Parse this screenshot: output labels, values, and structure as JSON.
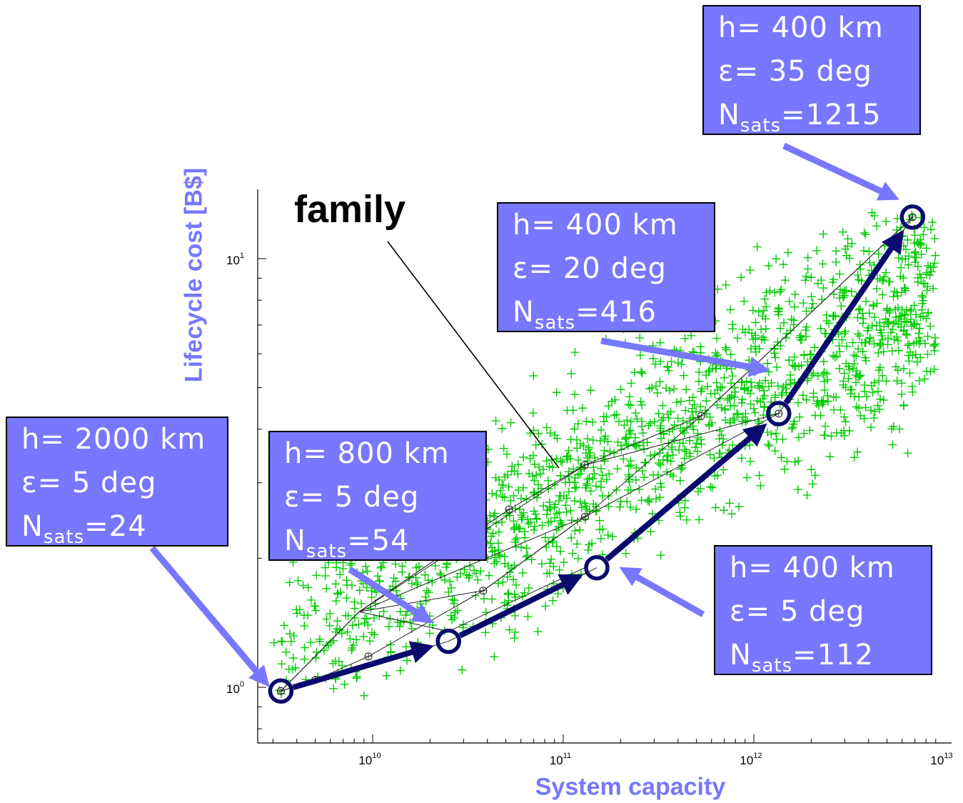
{
  "chart_data": {
    "type": "scatter",
    "xlabel": "System capacity",
    "ylabel": "Lifecycle cost [B$]",
    "xscale": "log",
    "yscale": "log",
    "xlim": [
      2600000000.0,
      10000000000000.0
    ],
    "ylim": [
      0.7,
      14
    ],
    "x_ticks": [
      {
        "value": 10000000000.0,
        "base": "10",
        "exp": "10"
      },
      {
        "value": 100000000000.0,
        "base": "10",
        "exp": "11"
      },
      {
        "value": 1000000000000.0,
        "base": "10",
        "exp": "12"
      },
      {
        "value": 10000000000000.0,
        "base": "10",
        "exp": "13"
      }
    ],
    "y_ticks": [
      {
        "value": 1,
        "base": "10",
        "exp": "0"
      },
      {
        "value": 10,
        "base": "10",
        "exp": "1"
      }
    ],
    "design_cloud": {
      "marker": "plus",
      "color": "#00cc00",
      "approx_count": 1600,
      "x_range": [
        3000000000.0,
        9000000000000.0
      ],
      "y_range": [
        0.95,
        13
      ],
      "note_trend": "log-linear upward band"
    },
    "pareto_path": {
      "color": "#0a0a6e",
      "points": [
        {
          "x": 3300000000.0,
          "y": 0.98
        },
        {
          "x": 25000000000.0,
          "y": 1.28
        },
        {
          "x": 150000000000.0,
          "y": 1.9
        },
        {
          "x": 1350000000000.0,
          "y": 4.35
        },
        {
          "x": 6800000000000.0,
          "y": 12.5
        }
      ]
    },
    "family_lines": {
      "color": "#000000",
      "markers": [
        {
          "x": 3300000000.0,
          "y": 0.98
        },
        {
          "x": 5000000000.0,
          "y": 1.04
        },
        {
          "x": 9500000000.0,
          "y": 1.18
        },
        {
          "x": 38000000000.0,
          "y": 1.68
        },
        {
          "x": 52000000000.0,
          "y": 2.6
        },
        {
          "x": 130000000000.0,
          "y": 2.5
        },
        {
          "x": 130000000000.0,
          "y": 3.3
        },
        {
          "x": 530000000000.0,
          "y": 4.3
        },
        {
          "x": 1350000000000.0,
          "y": 4.35
        },
        {
          "x": 6800000000000.0,
          "y": 12.5
        }
      ],
      "lines": [
        [
          [
            3300000000.0,
            0.98
          ],
          [
            8500000000.0,
            1.5
          ],
          [
            52000000000.0,
            2.6
          ],
          [
            130000000000.0,
            3.3
          ],
          [
            530000000000.0,
            4.3
          ],
          [
            6800000000000.0,
            12.5
          ]
        ],
        [
          [
            3300000000.0,
            0.98
          ],
          [
            5000000000.0,
            1.04
          ],
          [
            9500000000.0,
            1.18
          ],
          [
            38000000000.0,
            1.68
          ],
          [
            130000000000.0,
            2.5
          ],
          [
            1350000000000.0,
            4.35
          ],
          [
            6800000000000.0,
            12.5
          ]
        ],
        [
          [
            3300000000.0,
            0.98
          ],
          [
            8500000000.0,
            1.5
          ],
          [
            38000000000.0,
            1.68
          ],
          [
            130000000000.0,
            2.5
          ]
        ],
        [
          [
            8500000000.0,
            1.5
          ],
          [
            130000000000.0,
            3.3
          ],
          [
            1350000000000.0,
            4.35
          ]
        ],
        [
          [
            8500000000.0,
            1.5
          ],
          [
            130000000000.0,
            2.5
          ],
          [
            530000000000.0,
            4.3
          ],
          [
            6800000000000.0,
            12.5
          ]
        ],
        [
          [
            3300000000.0,
            0.98
          ],
          [
            25000000000.0,
            1.28
          ],
          [
            150000000000.0,
            1.9
          ]
        ],
        [
          [
            3300000000.0,
            0.98
          ],
          [
            8500000000.0,
            1.5
          ],
          [
            52000000000.0,
            2.6
          ]
        ],
        [
          [
            8500000000.0,
            1.5
          ],
          [
            25000000000.0,
            1.35
          ],
          [
            130000000000.0,
            1.9
          ]
        ]
      ]
    },
    "annotations": [
      {
        "id": "2000km",
        "line1": "h= 2000 km",
        "line2": "ε= 5 deg",
        "n_label": "N",
        "n_sub": "sats",
        "n_value": "=24",
        "points_to": {
          "x": 3300000000.0,
          "y": 0.98
        }
      },
      {
        "id": "800km",
        "line1": "h= 800 km",
        "line2": "ε= 5 deg",
        "n_label": "N",
        "n_sub": "sats",
        "n_value": "=54",
        "points_to": {
          "x": 25000000000.0,
          "y": 1.28
        }
      },
      {
        "id": "400km-5deg",
        "line1": "h= 400 km",
        "line2": "ε= 5 deg",
        "n_label": "N",
        "n_sub": "sats",
        "n_value": "=112",
        "points_to": {
          "x": 150000000000.0,
          "y": 1.9
        }
      },
      {
        "id": "400km-20deg",
        "line1": "h= 400 km",
        "line2": "ε= 20 deg",
        "n_label": "N",
        "n_sub": "sats",
        "n_value": "=416",
        "points_to": {
          "x": 1350000000000.0,
          "y": 4.35
        }
      },
      {
        "id": "400km-35deg",
        "line1": "h= 400 km",
        "line2": "ε= 35 deg",
        "n_label": "N",
        "n_sub": "sats",
        "n_value": "=1215",
        "points_to": {
          "x": 6800000000000.0,
          "y": 12.5
        }
      }
    ],
    "family_label": "family",
    "colors": {
      "annotation_fill": "#7777ff",
      "annotation_arrow": "#7777ff",
      "axis_title": "#7777ff",
      "pareto": "#0a0a6e",
      "cloud": "#00cc00"
    }
  }
}
